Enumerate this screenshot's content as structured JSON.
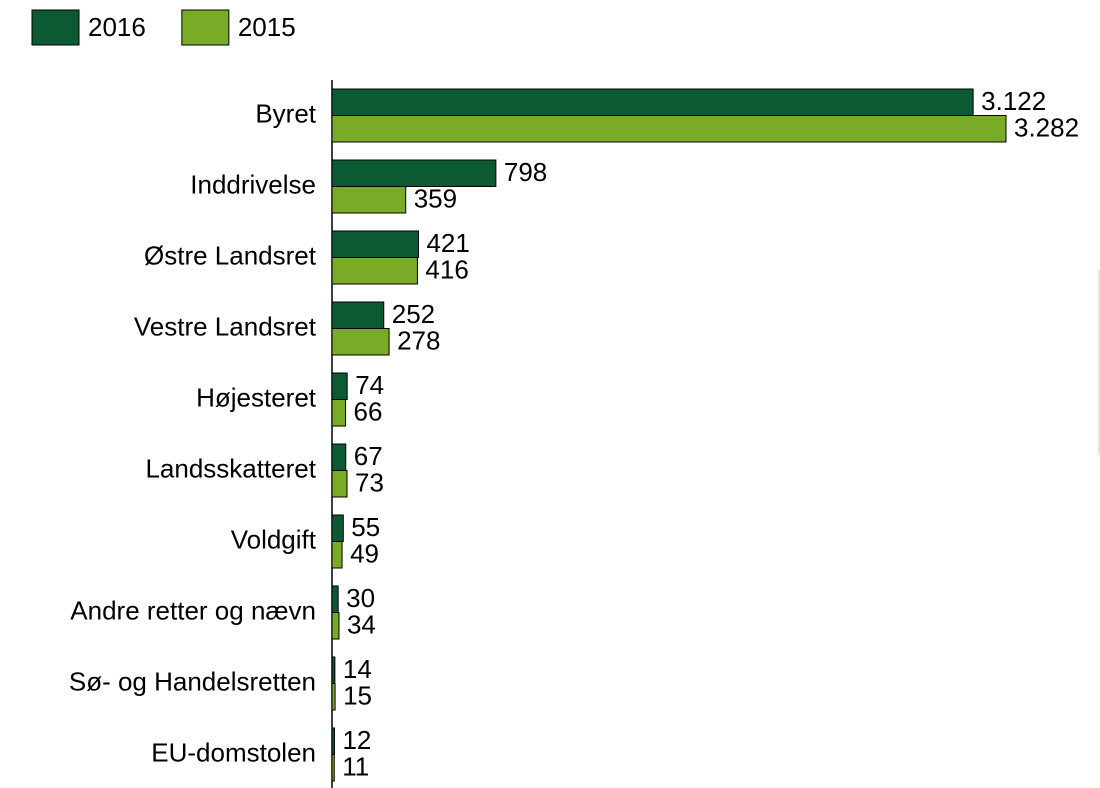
{
  "chart_data": {
    "type": "bar",
    "categories": [
      "Byret",
      "Inddrivelse",
      "Østre Landsret",
      "Vestre Landsret",
      "Højesteret",
      "Landsskatteret",
      "Voldgift",
      "Andre retter og nævn",
      "Sø- og Handelsretten",
      "EU-domstolen"
    ],
    "series": [
      {
        "name": "2016",
        "color": "#0b5a34",
        "values": [
          3122,
          798,
          421,
          252,
          74,
          67,
          55,
          30,
          14,
          12
        ],
        "value_labels": [
          "3.122",
          "798",
          "421",
          "252",
          "74",
          "67",
          "55",
          "30",
          "14",
          "12"
        ]
      },
      {
        "name": "2015",
        "color": "#7aab26",
        "values": [
          3282,
          359,
          416,
          278,
          66,
          73,
          49,
          34,
          15,
          11
        ],
        "value_labels": [
          "3.282",
          "359",
          "416",
          "278",
          "66",
          "73",
          "49",
          "34",
          "15",
          "11"
        ]
      }
    ],
    "orientation": "horizontal",
    "legend": "top-left"
  }
}
